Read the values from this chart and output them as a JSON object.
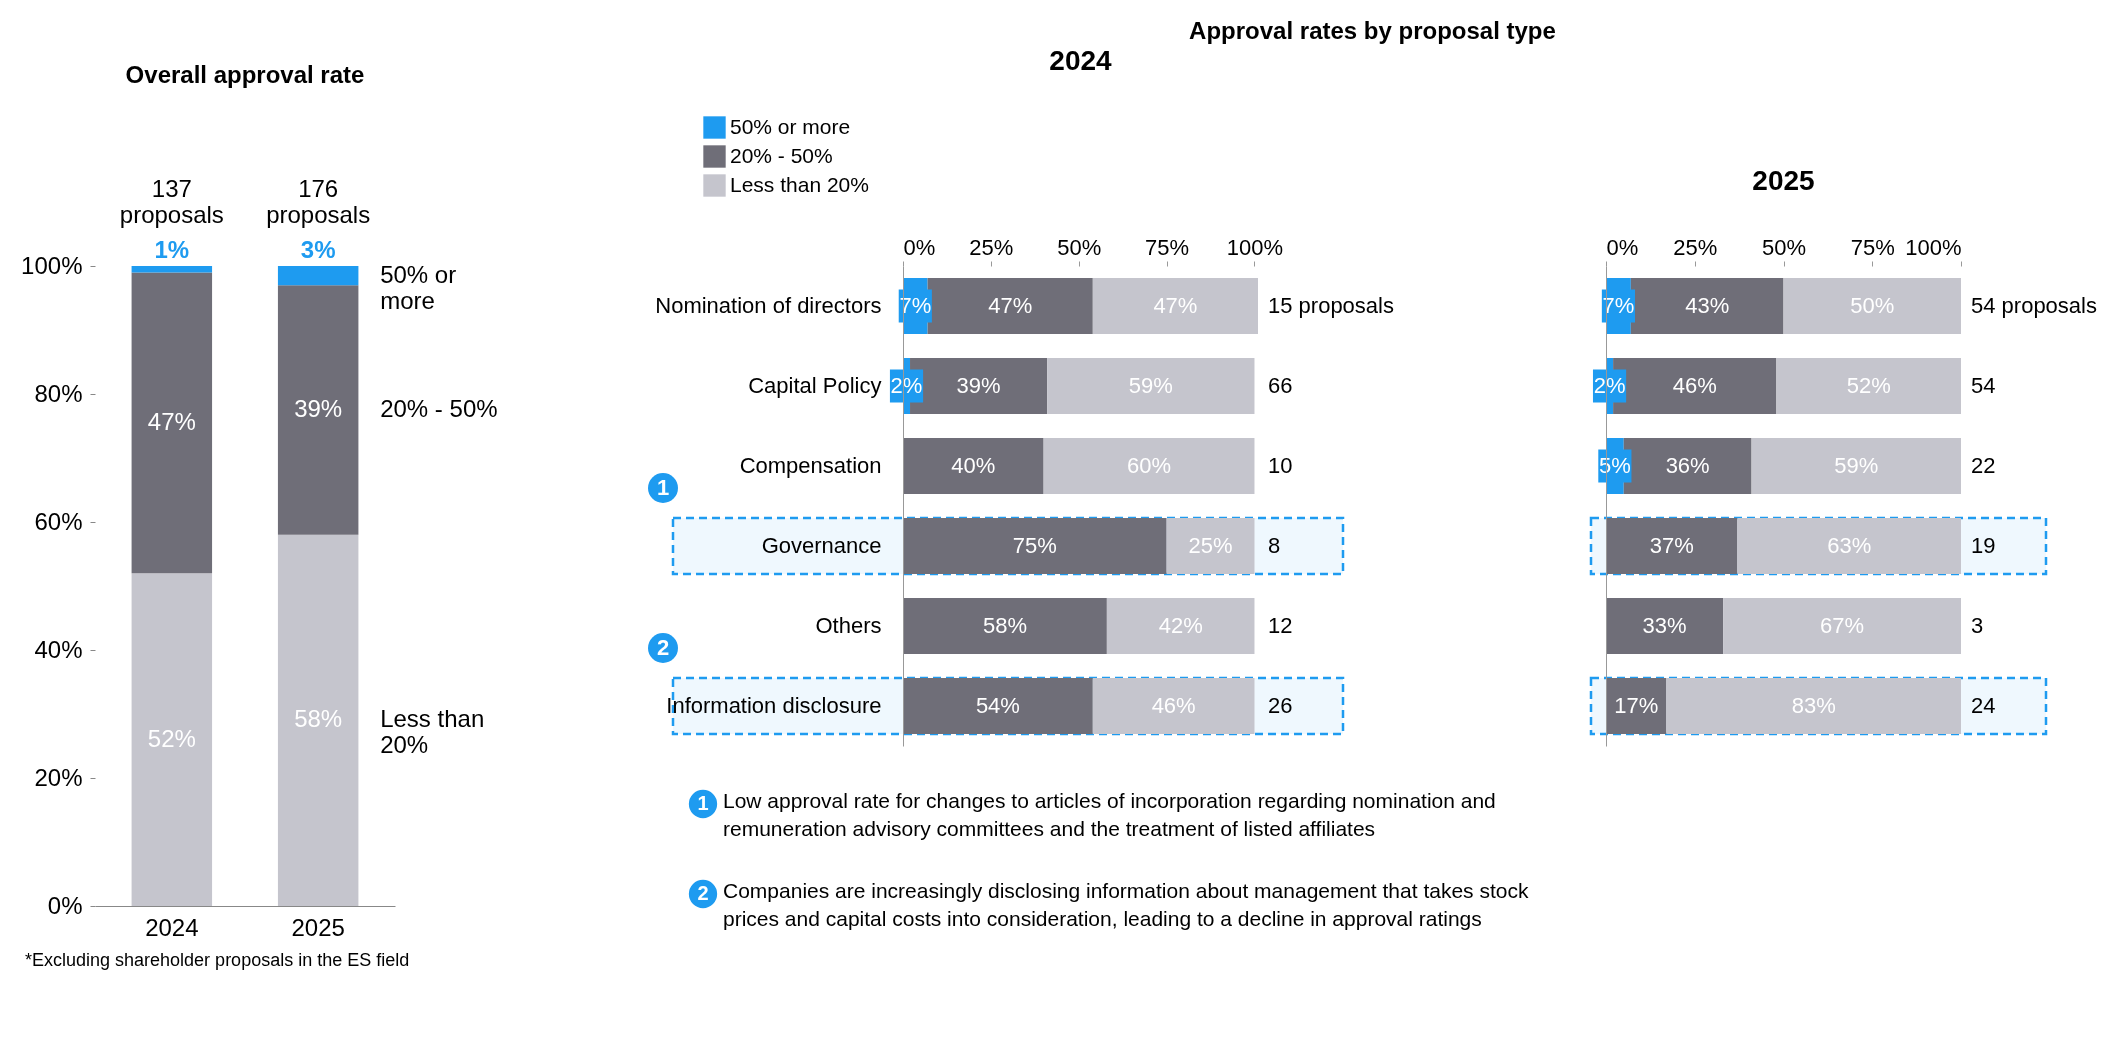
{
  "chart_data": [
    {
      "type": "bar",
      "title": "Overall approval rate",
      "stacked": true,
      "categories": [
        "2024",
        "2025"
      ],
      "series": [
        {
          "name": "Less than 20%",
          "color": "#c5c5cd",
          "values": [
            52,
            58
          ],
          "value_labels": [
            "52%",
            "58%"
          ]
        },
        {
          "name": "20% - 50%",
          "color": "#6f6e78",
          "values": [
            47,
            39
          ],
          "value_labels": [
            "47%",
            "39%"
          ]
        },
        {
          "name": "50% or more",
          "color": "#1e9bf0",
          "values": [
            1,
            3
          ],
          "value_labels": [
            "1%",
            "3%"
          ]
        }
      ],
      "ylim": [
        0,
        100
      ],
      "yticks": [
        {
          "value": 0,
          "label": "0%"
        },
        {
          "value": 20,
          "label": "20%"
        },
        {
          "value": 40,
          "label": "40%"
        },
        {
          "value": 60,
          "label": "60%"
        },
        {
          "value": 80,
          "label": "80%"
        },
        {
          "value": 100,
          "label": "100%"
        }
      ],
      "grid": false,
      "annotations": [
        "137 proposals",
        "176 proposals",
        "*Excluding shareholder proposals in the ES field"
      ]
    },
    {
      "type": "bar",
      "title": "2024",
      "subtitle": "Approval rates by proposal type",
      "stacked": true,
      "orientation": "horizontal",
      "legend": "top left",
      "categories": [
        "Nomination of directors",
        "Capital Policy",
        "Compensation",
        "Governance",
        "Others",
        "Information disclosure"
      ],
      "series": [
        {
          "name": "50% or more",
          "color": "#1e9bf0",
          "values": [
            7,
            2,
            null,
            null,
            null,
            null
          ],
          "value_labels": [
            "7%",
            "2%",
            null,
            null,
            null,
            null
          ]
        },
        {
          "name": "20% - 50%",
          "color": "#6f6e78",
          "values": [
            47,
            39,
            40,
            75,
            58,
            54
          ],
          "value_labels": [
            "47%",
            "39%",
            "40%",
            "75%",
            "58%",
            "54%"
          ]
        },
        {
          "name": "Less than 20%",
          "color": "#c5c5cd",
          "values": [
            47,
            59,
            60,
            25,
            42,
            46
          ],
          "value_labels": [
            "47%",
            "59%",
            "60%",
            "25%",
            "42%",
            "46%"
          ]
        }
      ],
      "xlim": [
        0,
        101
      ],
      "xticks": [
        {
          "value": 0,
          "label": "0%"
        },
        {
          "value": 25,
          "label": "25%"
        },
        {
          "value": 50,
          "label": "50%"
        },
        {
          "value": 75,
          "label": "75%"
        },
        {
          "value": 100,
          "label": "100%"
        }
      ],
      "grid": false,
      "bands": [
        {
          "axis": "y",
          "from": "Governance",
          "to": "Governance",
          "label": "1",
          "color": "#1e9bf0"
        },
        {
          "axis": "y",
          "from": "Information disclosure",
          "to": "Information disclosure",
          "label": "2",
          "color": "#1e9bf0"
        }
      ],
      "annotations": [
        "15 proposals",
        "66",
        "10",
        "8",
        "12",
        "26",
        "Low approval rate for changes to articles of incorporation regarding nomination and remuneration advisory committees and the treatment of listed affiliates",
        "Companies are increasingly disclosing information about management that takes stock prices and capital costs into consideration, leading to a decline in approval ratings"
      ]
    },
    {
      "type": "bar",
      "title": "2025",
      "stacked": true,
      "orientation": "horizontal",
      "tick_labels": "x",
      "categories": [
        "Nomination of directors",
        "Capital Policy",
        "Compensation",
        "Governance",
        "Others",
        "Information disclosure"
      ],
      "series": [
        {
          "name": "50% or more",
          "color": "#1e9bf0",
          "values": [
            7,
            2,
            5,
            null,
            null,
            null
          ],
          "value_labels": [
            "7%",
            "2%",
            "5%",
            null,
            null,
            null
          ]
        },
        {
          "name": "20% - 50%",
          "color": "#6f6e78",
          "values": [
            43,
            46,
            36,
            37,
            33,
            17
          ],
          "value_labels": [
            "43%",
            "46%",
            "36%",
            "37%",
            "33%",
            "17%"
          ]
        },
        {
          "name": "Less than 20%",
          "color": "#c5c5cd",
          "values": [
            50,
            52,
            59,
            63,
            67,
            83
          ],
          "value_labels": [
            "50%",
            "52%",
            "59%",
            "63%",
            "67%",
            "83%"
          ]
        }
      ],
      "xlim": [
        0,
        100
      ],
      "xticks": [
        {
          "value": 0,
          "label": "0%"
        },
        {
          "value": 25,
          "label": "25%"
        },
        {
          "value": 50,
          "label": "50%"
        },
        {
          "value": 75,
          "label": "75%"
        },
        {
          "value": 100,
          "label": "100%"
        }
      ],
      "grid": false,
      "bands": [
        {
          "axis": "y",
          "from": "Governance",
          "to": "Governance",
          "color": "#1e9bf0"
        },
        {
          "axis": "y",
          "from": "Information disclosure",
          "to": "Information disclosure",
          "color": "#1e9bf0"
        }
      ],
      "annotations": [
        "54 proposals",
        "54",
        "22",
        "19",
        "3",
        "24"
      ]
    }
  ]
}
